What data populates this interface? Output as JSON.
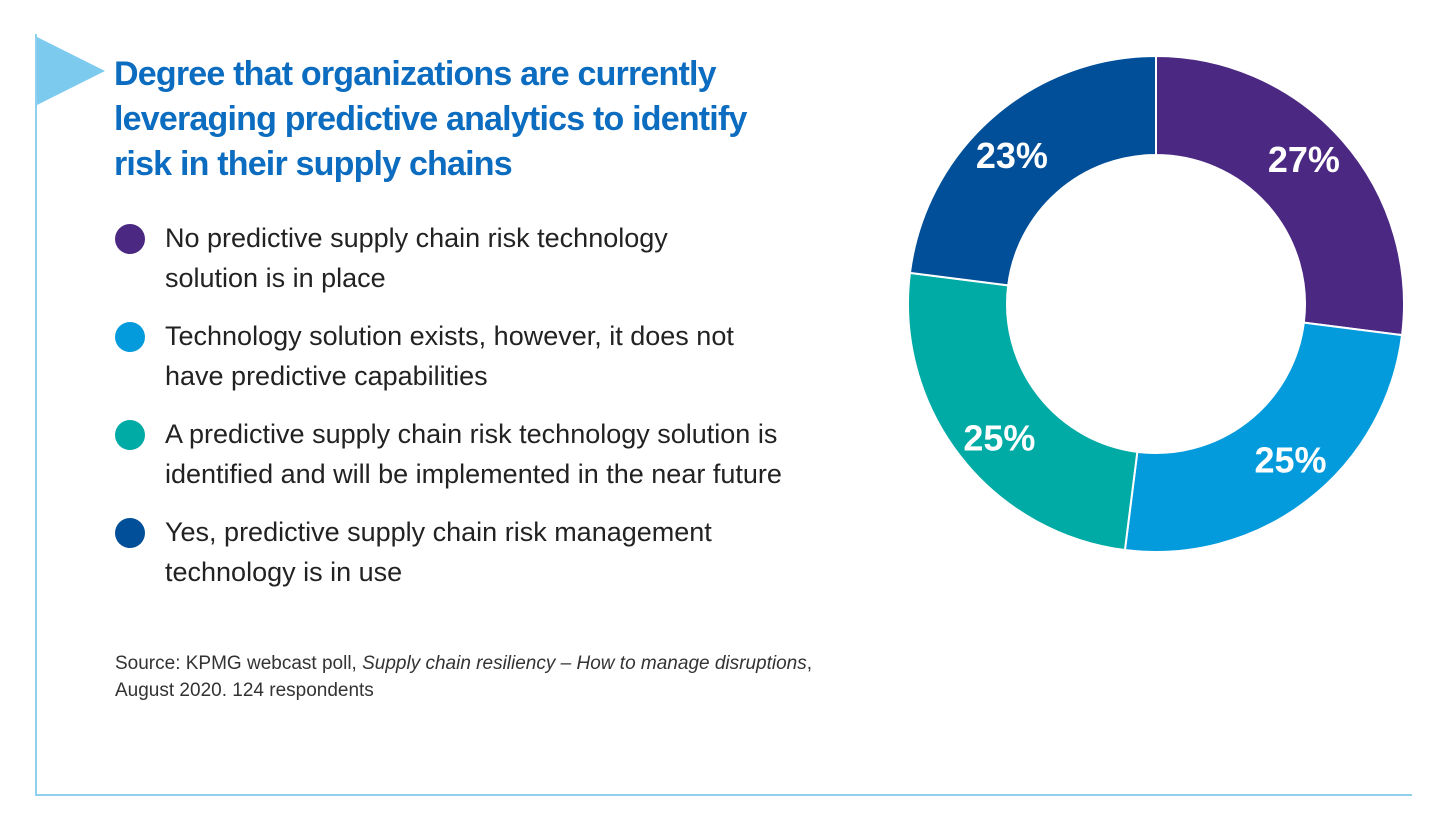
{
  "chart_data": {
    "type": "pie",
    "donut": true,
    "title": "Degree that organizations are currently leveraging predictive analytics to identify risk in their supply chains",
    "categories": [
      "No predictive supply chain risk technology solution is in place",
      "Technology solution exists, however, it does not have predictive capabilities",
      "A predictive supply chain risk technology solution is identified and will be implemented in the near future",
      "Yes, predictive supply chain risk management technology is in use"
    ],
    "legend_lines": [
      [
        "No predictive supply chain risk technology",
        "solution is in place"
      ],
      [
        "Technology solution exists, however, it does not",
        "have predictive capabilities"
      ],
      [
        "A predictive supply chain risk technology solution is",
        "identified and will be implemented in the near future"
      ],
      [
        "Yes, predictive supply chain risk management",
        "technology is in use"
      ]
    ],
    "values": [
      27,
      25,
      25,
      23
    ],
    "labels": [
      "27%",
      "25%",
      "25%",
      "23%"
    ],
    "colors": [
      "#4b2882",
      "#049bdc",
      "#00aaa5",
      "#004f98"
    ],
    "legend_placement": "left"
  },
  "title_lines": [
    "Degree that organizations are currently",
    "leveraging predictive analytics to identify",
    "risk in their supply chains"
  ],
  "source": {
    "prefix": "Source: KPMG webcast poll, ",
    "italic": "Supply chain resiliency – How to manage disruptions",
    "suffix": ",",
    "line2": "August 2020. 124 respondents"
  }
}
